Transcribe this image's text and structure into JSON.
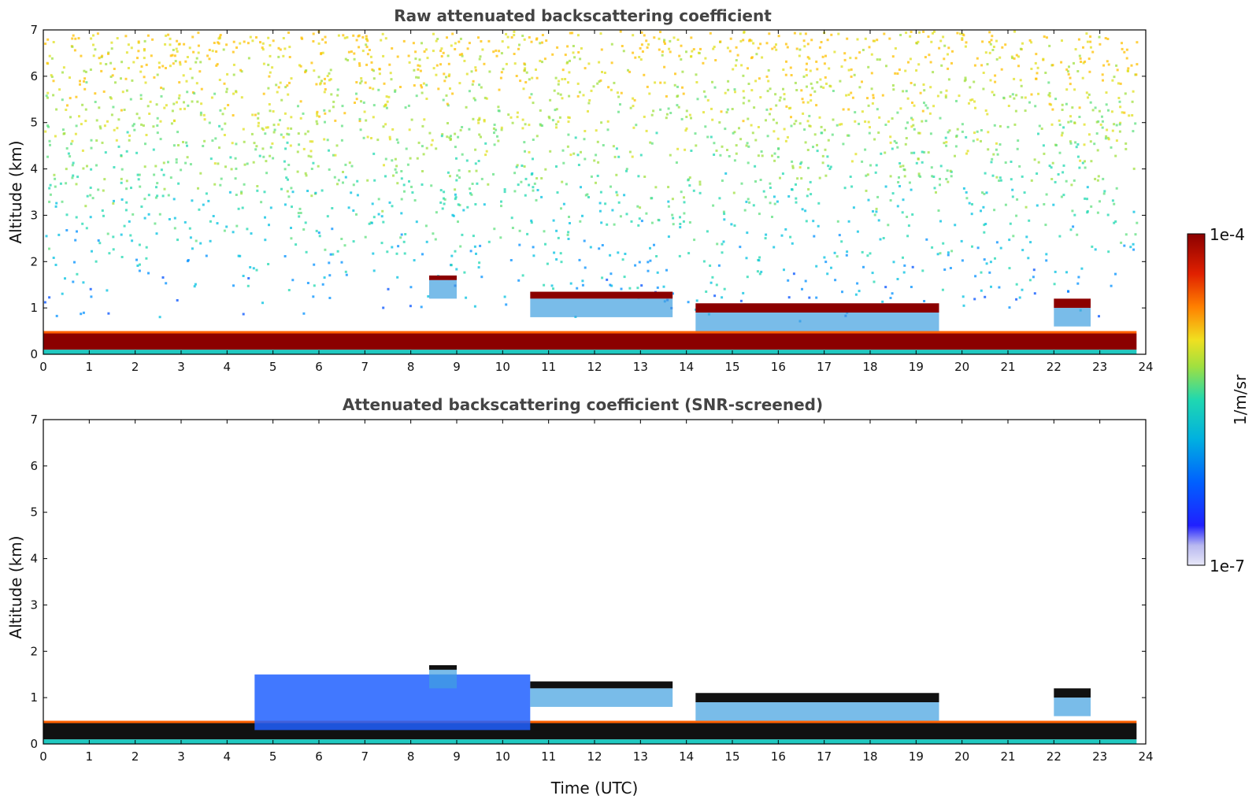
{
  "chart_data": [
    {
      "type": "heatmap",
      "title": "Raw attenuated backscattering coefficient",
      "xlabel": "",
      "ylabel": "Altitude (km)",
      "xlim": [
        0,
        24
      ],
      "ylim": [
        0,
        7
      ],
      "xticks": [
        "0",
        "1",
        "2",
        "3",
        "4",
        "5",
        "6",
        "7",
        "8",
        "9",
        "10",
        "11",
        "12",
        "13",
        "14",
        "15",
        "16",
        "17",
        "18",
        "19",
        "20",
        "21",
        "22",
        "23",
        "24"
      ],
      "yticks": [
        "0",
        "1",
        "2",
        "3",
        "4",
        "5",
        "6",
        "7"
      ],
      "grid": false,
      "features": [
        {
          "layer": "boundary layer (strong backscatter)",
          "x": [
            0,
            23.8
          ],
          "altitude_km": [
            0.1,
            0.45
          ]
        },
        {
          "layer": "elevated cloud",
          "x": [
            8.4,
            9.0
          ],
          "altitude_km": [
            1.6,
            1.7
          ]
        },
        {
          "layer": "elevated cloud",
          "x": [
            10.6,
            13.7
          ],
          "altitude_km": [
            1.2,
            1.35
          ]
        },
        {
          "layer": "elevated cloud",
          "x": [
            14.2,
            19.5
          ],
          "altitude_km": [
            0.9,
            1.1
          ]
        },
        {
          "layer": "elevated cloud",
          "x": [
            22.0,
            22.8
          ],
          "altitude_km": [
            1.0,
            1.2
          ]
        },
        {
          "layer": "noisy background",
          "x": [
            0,
            23.8
          ],
          "altitude_km": [
            1.0,
            7.0
          ]
        }
      ]
    },
    {
      "type": "heatmap",
      "title": "Attenuated backscattering coefficient (SNR-screened)",
      "xlabel": "Time (UTC)",
      "ylabel": "Altitude (km)",
      "xlim": [
        0,
        24
      ],
      "ylim": [
        0,
        7
      ],
      "xticks": [
        "0",
        "1",
        "2",
        "3",
        "4",
        "5",
        "6",
        "7",
        "8",
        "9",
        "10",
        "11",
        "12",
        "13",
        "14",
        "15",
        "16",
        "17",
        "18",
        "19",
        "20",
        "21",
        "22",
        "23",
        "24"
      ],
      "yticks": [
        "0",
        "1",
        "2",
        "3",
        "4",
        "5",
        "6",
        "7"
      ],
      "grid": false,
      "features": [
        {
          "layer": "boundary layer (strong backscatter)",
          "x": [
            0,
            23.8
          ],
          "altitude_km": [
            0.1,
            0.45
          ]
        },
        {
          "layer": "aerosol layer",
          "x": [
            4.6,
            10.6
          ],
          "altitude_km": [
            0.3,
            1.5
          ]
        },
        {
          "layer": "elevated cloud",
          "x": [
            8.4,
            9.0
          ],
          "altitude_km": [
            1.6,
            1.7
          ]
        },
        {
          "layer": "elevated cloud",
          "x": [
            10.6,
            13.7
          ],
          "altitude_km": [
            1.2,
            1.35
          ]
        },
        {
          "layer": "elevated cloud",
          "x": [
            14.2,
            19.5
          ],
          "altitude_km": [
            0.9,
            1.1
          ]
        },
        {
          "layer": "elevated cloud",
          "x": [
            22.0,
            22.8
          ],
          "altitude_km": [
            1.0,
            1.2
          ]
        }
      ]
    }
  ],
  "colorbar": {
    "label": "1/m/sr",
    "max_label": "1e-4",
    "min_label": "1e-7",
    "scale": "log",
    "colormap": "jet",
    "colors": [
      "#e8e8f8",
      "#c0c0f0",
      "#3030ff",
      "#0070ff",
      "#00b0e0",
      "#20d8b0",
      "#a0e040",
      "#f0e020",
      "#ff8000",
      "#e02000",
      "#8b0000"
    ]
  },
  "colors": {
    "layer_dark": "#8b0000",
    "layer_black": "#111111",
    "axes": "#000000",
    "title": "#444444"
  }
}
